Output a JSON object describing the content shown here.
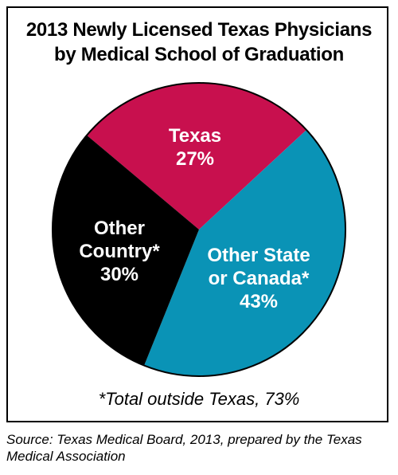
{
  "chart_data": {
    "type": "pie",
    "title_lines": [
      "2013 Newly Licensed Texas Physicians",
      "by Medical School of Graduation"
    ],
    "slices": [
      {
        "name_lines": [
          "Texas"
        ],
        "value": 27,
        "value_label": "27%",
        "color": "#C8104E"
      },
      {
        "name_lines": [
          "Other State",
          "or Canada*"
        ],
        "value": 43,
        "value_label": "43%",
        "color": "#0A93B6"
      },
      {
        "name_lines": [
          "Other",
          "Country*"
        ],
        "value": 30,
        "value_label": "30%",
        "color": "#000000"
      }
    ],
    "footnote": "*Total outside Texas, 73%"
  },
  "source_note": "Source: Texas Medical Board, 2013, prepared by the Texas Medical Association"
}
